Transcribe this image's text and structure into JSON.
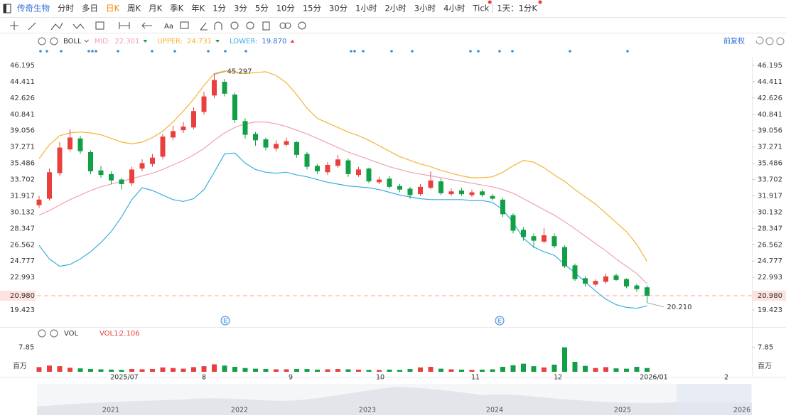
{
  "toolbar": {
    "stock": "传奇生物",
    "periods": [
      "分时",
      "多日",
      "日K",
      "周K",
      "月K",
      "季K",
      "年K",
      "1分",
      "3分",
      "5分",
      "10分",
      "15分",
      "30分",
      "1小时",
      "2小时",
      "3小时",
      "4小时",
      "Tick"
    ],
    "active": 2,
    "range": "1天：1分K",
    "text_tool": "Aa"
  },
  "chart_data": {
    "type": "candlestick",
    "indicator": "BOLL",
    "adjust": "前复权",
    "ylim": [
      17.71,
      47.13
    ],
    "yticks": [
      46.195,
      44.411,
      42.626,
      40.841,
      39.056,
      37.271,
      35.486,
      33.702,
      31.917,
      30.132,
      28.347,
      26.562,
      24.777,
      22.993,
      19.423
    ],
    "last_price": {
      "value": 20.98,
      "label": "20.980"
    },
    "annotations": [
      {
        "value": 20.21,
        "label": "20.210"
      }
    ],
    "up_color": "#e8403f",
    "down_color": "#12a047",
    "open": [
      30.9,
      31.6,
      34.4,
      37.0,
      38.2,
      36.7,
      34.7,
      34.3,
      33.7,
      33.3,
      34.9,
      35.4,
      36.2,
      38.3,
      39.1,
      39.4,
      41.1,
      42.9,
      44.4,
      43.0,
      40.1,
      38.7,
      38.1,
      37.1,
      37.5,
      37.8,
      36.5,
      35.2,
      34.5,
      35.2,
      35.8,
      34.2,
      34.9,
      33.4,
      33.8,
      33.0,
      32.7,
      32.1,
      32.8,
      33.5,
      32.1,
      32.5,
      32.0,
      32.4,
      31.9,
      31.5,
      29.8,
      28.2,
      27.5,
      26.9,
      27.5,
      26.3,
      24.3,
      22.9,
      22.2,
      22.5,
      23.2,
      22.8,
      22.1,
      21.9
    ],
    "high": [
      31.9,
      34.9,
      37.8,
      39.2,
      38.5,
      36.9,
      35.2,
      34.6,
      33.9,
      35.1,
      35.9,
      36.5,
      38.7,
      39.6,
      40.0,
      41.6,
      43.3,
      45.297,
      44.7,
      43.2,
      40.4,
      38.9,
      38.3,
      38.0,
      38.3,
      37.9,
      36.7,
      35.4,
      35.6,
      36.4,
      36.0,
      35.1,
      35.0,
      34.0,
      34.1,
      33.2,
      32.9,
      33.2,
      34.6,
      33.8,
      32.7,
      32.8,
      32.6,
      32.6,
      32.1,
      31.7,
      30.0,
      28.5,
      27.8,
      28.4,
      27.8,
      26.5,
      24.5,
      23.1,
      22.8,
      23.4,
      23.4,
      22.9,
      22.3,
      22.1
    ],
    "low": [
      30.6,
      31.4,
      34.1,
      36.8,
      36.5,
      34.3,
      33.9,
      33.2,
      32.6,
      33.0,
      34.6,
      35.1,
      35.9,
      38.0,
      38.8,
      39.2,
      40.8,
      42.6,
      42.8,
      39.9,
      38.2,
      37.4,
      36.9,
      36.8,
      37.3,
      36.1,
      34.8,
      34.3,
      34.2,
      35.0,
      34.0,
      34.0,
      33.3,
      33.2,
      32.7,
      32.3,
      31.6,
      31.9,
      32.6,
      32.0,
      31.9,
      31.9,
      31.8,
      31.8,
      31.4,
      29.6,
      27.8,
      27.0,
      26.2,
      26.7,
      26.2,
      24.0,
      22.6,
      22.0,
      22.0,
      22.3,
      22.6,
      21.8,
      21.4,
      20.21
    ],
    "close": [
      31.5,
      34.5,
      37.2,
      38.3,
      36.8,
      34.6,
      34.2,
      33.6,
      33.2,
      34.8,
      35.5,
      36.1,
      38.4,
      39.0,
      39.5,
      41.2,
      42.8,
      44.6,
      43.1,
      40.2,
      38.6,
      38.0,
      37.2,
      37.6,
      37.9,
      36.4,
      35.1,
      34.6,
      35.3,
      35.9,
      34.3,
      34.8,
      33.5,
      33.7,
      32.9,
      32.6,
      32.0,
      32.9,
      33.6,
      32.2,
      32.4,
      32.1,
      32.3,
      32.0,
      31.6,
      29.9,
      28.1,
      27.4,
      27.0,
      27.6,
      26.4,
      24.2,
      22.8,
      22.3,
      22.6,
      23.1,
      22.7,
      22.0,
      21.7,
      20.98
    ],
    "series": [
      {
        "name": "MID:",
        "color": "#f0a1b2",
        "values": [
          29.8,
          30.3,
          30.9,
          31.5,
          32.0,
          32.5,
          32.9,
          33.2,
          33.5,
          33.8,
          34.1,
          34.4,
          34.8,
          35.3,
          35.8,
          36.4,
          37.1,
          38.0,
          38.8,
          39.4,
          39.8,
          40.0,
          40.0,
          39.8,
          39.5,
          39.1,
          38.7,
          38.2,
          37.7,
          37.2,
          36.7,
          36.3,
          35.9,
          35.5,
          35.1,
          34.8,
          34.5,
          34.3,
          34.1,
          33.9,
          33.7,
          33.5,
          33.3,
          33.1,
          32.9,
          32.6,
          32.2,
          31.6,
          31.0,
          30.4,
          29.8,
          29.1,
          28.3,
          27.5,
          26.7,
          25.9,
          25.0,
          24.2,
          23.4,
          22.301
        ]
      },
      {
        "name": "UPPER:",
        "color": "#f5b335",
        "values": [
          36.0,
          37.5,
          38.5,
          38.8,
          38.9,
          38.8,
          38.6,
          38.2,
          37.8,
          37.6,
          37.8,
          38.3,
          39.0,
          40.0,
          41.2,
          42.5,
          44.0,
          45.3,
          45.6,
          45.5,
          45.3,
          45.4,
          45.5,
          45.1,
          44.3,
          43.0,
          41.5,
          40.4,
          39.9,
          39.4,
          38.9,
          38.5,
          38.0,
          37.4,
          36.8,
          36.2,
          35.8,
          35.4,
          35.1,
          34.7,
          34.4,
          34.1,
          33.9,
          33.9,
          34.0,
          34.5,
          35.2,
          35.8,
          35.6,
          35.0,
          34.2,
          33.5,
          32.6,
          31.8,
          31.0,
          30.0,
          29.0,
          28.0,
          26.6,
          24.731
        ]
      },
      {
        "name": "LOWER:",
        "color": "#3aaee0",
        "values": [
          26.5,
          25.0,
          24.2,
          24.4,
          25.0,
          25.8,
          26.8,
          28.0,
          29.6,
          31.5,
          32.8,
          32.5,
          32.0,
          31.5,
          31.3,
          31.6,
          32.6,
          34.5,
          36.5,
          36.6,
          35.5,
          34.8,
          34.5,
          34.4,
          34.5,
          34.2,
          34.0,
          33.7,
          33.4,
          33.2,
          33.0,
          32.9,
          32.8,
          32.6,
          32.3,
          32.0,
          31.8,
          31.6,
          31.5,
          31.5,
          31.5,
          31.5,
          31.4,
          31.4,
          31.2,
          30.4,
          29.0,
          27.3,
          26.3,
          25.8,
          25.4,
          24.4,
          23.5,
          22.5,
          21.5,
          20.6,
          20.0,
          19.7,
          19.6,
          19.87
        ],
        "value_labels": [
          null,
          null,
          null,
          null,
          null,
          null,
          null,
          null,
          null,
          null,
          null,
          null,
          null,
          null,
          null,
          null,
          null,
          null,
          null,
          null,
          null,
          null,
          null,
          null,
          null,
          null,
          null,
          null,
          null,
          null,
          null,
          null,
          null,
          null,
          null,
          null,
          null,
          null,
          null,
          null,
          null,
          null,
          null,
          null,
          null,
          null,
          null,
          null,
          null,
          null,
          null,
          null,
          null,
          null,
          null,
          null,
          null,
          null,
          null,
          "19.870"
        ]
      }
    ],
    "x_labels": [
      "2025/07",
      "8",
      "9",
      "10",
      "11",
      "12",
      "2026/01",
      "2"
    ],
    "events": [
      "E",
      "E"
    ],
    "volume": {
      "name": "VOL",
      "ma_name": "VOL1:",
      "ma_value": 2.106,
      "unit": "百万",
      "ylim": [
        0,
        8.9
      ],
      "yticks": [
        7.85
      ],
      "values": [
        1.5,
        2.0,
        1.8,
        1.3,
        1.1,
        0.9,
        0.8,
        0.7,
        0.6,
        0.9,
        0.8,
        0.9,
        1.4,
        1.2,
        1.0,
        1.5,
        1.8,
        2.4,
        2.0,
        1.6,
        1.2,
        1.0,
        0.9,
        0.8,
        0.8,
        0.9,
        0.9,
        0.7,
        0.8,
        0.9,
        0.8,
        0.7,
        0.6,
        0.6,
        0.7,
        0.6,
        0.9,
        1.4,
        1.6,
        1.0,
        0.8,
        0.7,
        0.6,
        0.7,
        0.8,
        1.6,
        2.1,
        2.6,
        1.8,
        1.4,
        2.3,
        7.85,
        3.2,
        1.9,
        1.2,
        1.5,
        1.1,
        1.0,
        1.6,
        1.2
      ]
    },
    "navigator": {
      "years": [
        "2021",
        "2022",
        "2023",
        "2024",
        "2025",
        "2026"
      ]
    }
  }
}
